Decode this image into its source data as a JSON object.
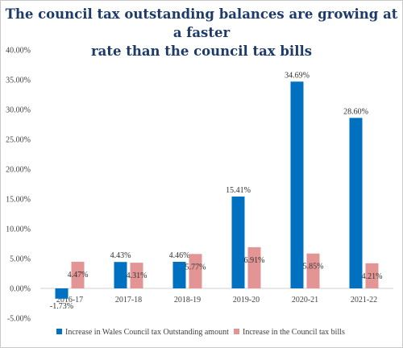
{
  "chart_data": {
    "type": "bar",
    "title_line1": "The council tax outstanding balances are growing at a faster",
    "title_line2": "rate than the council tax bills",
    "categories": [
      "2016-17",
      "2017-18",
      "2018-19",
      "2019-20",
      "2020-21",
      "2021-22"
    ],
    "series": [
      {
        "name": "Increase in Wales Council tax Outstanding amount",
        "values": [
          -1.73,
          4.43,
          4.46,
          15.41,
          34.69,
          28.6
        ],
        "labels": [
          "-1.73%",
          "4.43%",
          "4.46%",
          "15.41%",
          "34.69%",
          "28.60%"
        ],
        "color": "#0070c0"
      },
      {
        "name": "Increase in the Council tax bills",
        "values": [
          4.47,
          4.31,
          5.77,
          6.91,
          5.85,
          4.21
        ],
        "labels": [
          "4.47%",
          "4.31%",
          "5.77%",
          "6.91%",
          "5.85%",
          "4.21%"
        ],
        "color": "#e39595"
      }
    ],
    "ylim": [
      -5,
      40
    ],
    "yticks": [
      -5,
      0,
      5,
      10,
      15,
      20,
      25,
      30,
      35,
      40
    ],
    "ytick_labels": [
      "-5.00%",
      "0.00%",
      "5.00%",
      "10.00%",
      "15.00%",
      "20.00%",
      "25.00%",
      "30.00%",
      "35.00%",
      "40.00%"
    ],
    "grid": false,
    "legend": "bottom"
  }
}
